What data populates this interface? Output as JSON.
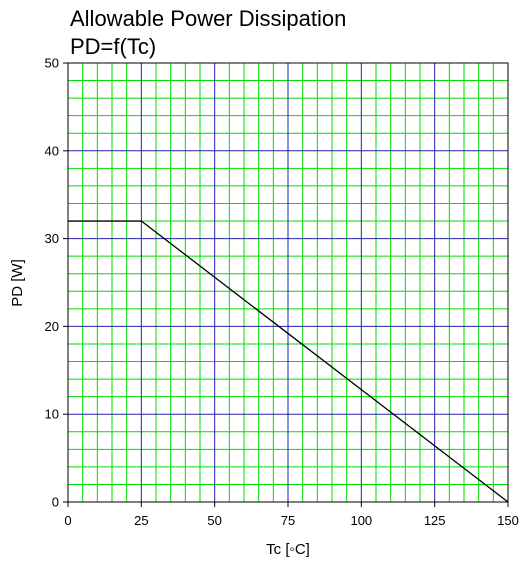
{
  "chart_data": {
    "type": "line",
    "title_lines": [
      "Allowable Power Dissipation",
      "PD=f(Tc)"
    ],
    "xlabel": "Tc [◦C]",
    "ylabel": "PD [W]",
    "xlim": [
      0,
      150
    ],
    "ylim": [
      0,
      50
    ],
    "x_ticks": [
      0,
      25,
      50,
      75,
      100,
      125,
      150
    ],
    "y_ticks": [
      0,
      10,
      20,
      30,
      40,
      50
    ],
    "x_minor_step": 5,
    "y_minor_step": 2,
    "grid": true,
    "series": [
      {
        "x": [
          0,
          25,
          150
        ],
        "y": [
          32,
          32,
          0
        ]
      }
    ],
    "colors": {
      "minor_grid": "#00dd00",
      "major_grid": "#2222aa",
      "line": "#000000",
      "frame": "#000000"
    }
  }
}
